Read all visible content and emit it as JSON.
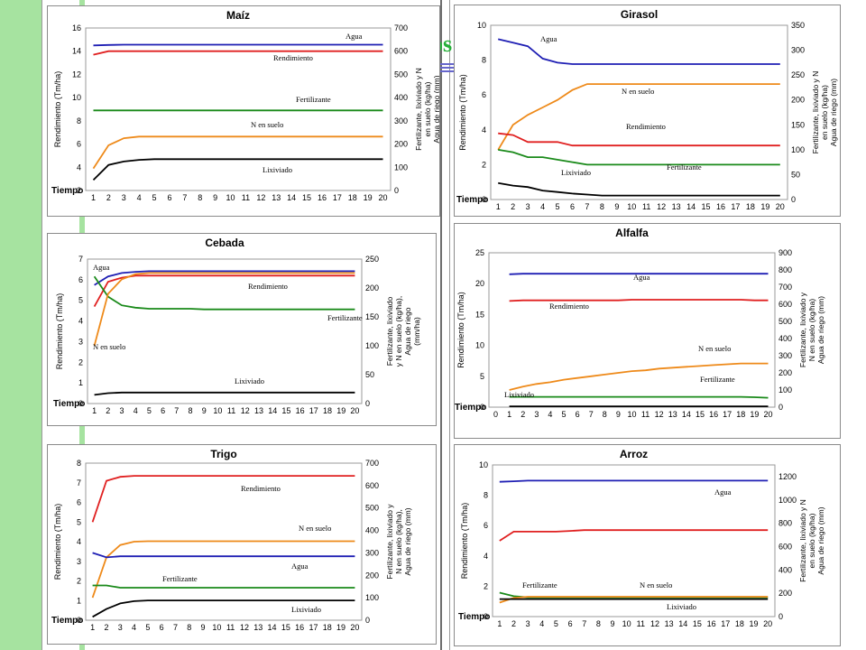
{
  "background": {
    "band_color": "#a6e3a0",
    "title_color": "#27b03a",
    "bar_color": "#6666cc"
  },
  "partial_title": "os",
  "series_colors": {
    "Agua": "#1f1fb4",
    "Rendimiento": "#e02020",
    "Fertilizante": "#1a8a1a",
    "N en suelo": "#ee8a1a",
    "Lixiviado": "#000000"
  },
  "chart_data": [
    {
      "type": "line",
      "title": "Maíz",
      "xlabel": "Tiempo",
      "ylabel_left": "Rendimiento (Tm/ha)",
      "ylabel_right": [
        "Fertilizante, lixiviado y N",
        "en suelo (kg/ha)",
        "Agua de riego (mm)"
      ],
      "x": [
        1,
        2,
        3,
        4,
        5,
        6,
        7,
        8,
        9,
        10,
        11,
        12,
        13,
        14,
        15,
        16,
        17,
        18,
        19,
        20
      ],
      "yleft_ticks": [
        2,
        4,
        6,
        8,
        10,
        12,
        14,
        16
      ],
      "yleft_lim": [
        2,
        16
      ],
      "yright_ticks": [
        0,
        100,
        200,
        300,
        400,
        500,
        600,
        700
      ],
      "yright_lim": [
        0,
        700
      ],
      "series": [
        {
          "name": "Agua",
          "axis": "right",
          "values": [
            625,
            627,
            628,
            628,
            628,
            628,
            628,
            628,
            628,
            628,
            628,
            628,
            628,
            628,
            628,
            628,
            628,
            628,
            628,
            628
          ]
        },
        {
          "name": "Rendimiento",
          "axis": "left",
          "values": [
            13.7,
            14.0,
            14.0,
            14.0,
            14.0,
            14.0,
            14.0,
            14.0,
            14.0,
            14.0,
            14.0,
            14.0,
            14.0,
            14.0,
            14.0,
            14.0,
            14.0,
            14.0,
            14.0,
            14.0
          ]
        },
        {
          "name": "Fertilizante",
          "axis": "right",
          "values": [
            345,
            345,
            345,
            345,
            345,
            345,
            345,
            345,
            345,
            345,
            345,
            345,
            345,
            345,
            345,
            345,
            345,
            345,
            345,
            345
          ]
        },
        {
          "name": "N en suelo",
          "axis": "right",
          "values": [
            95,
            195,
            225,
            232,
            232,
            232,
            232,
            232,
            232,
            232,
            232,
            232,
            232,
            232,
            232,
            232,
            232,
            232,
            232,
            232
          ]
        },
        {
          "name": "Lixiviado",
          "axis": "right",
          "values": [
            45,
            110,
            125,
            132,
            135,
            135,
            135,
            135,
            135,
            135,
            135,
            135,
            135,
            135,
            135,
            135,
            135,
            135,
            135,
            135
          ]
        }
      ]
    },
    {
      "type": "line",
      "title": "Girasol",
      "xlabel": "Tiempo",
      "ylabel_left": "Rendimiento (Tm/ha)",
      "ylabel_right": [
        "Fertilizante, lixiviado y N",
        "en suelo (kg/ha)",
        "Agua de riego (mm)"
      ],
      "x": [
        1,
        2,
        3,
        4,
        5,
        6,
        7,
        8,
        9,
        10,
        11,
        12,
        13,
        14,
        15,
        16,
        17,
        18,
        19,
        20
      ],
      "yleft_ticks": [
        0,
        2,
        4,
        6,
        8,
        10
      ],
      "yleft_lim": [
        0,
        10
      ],
      "yright_ticks": [
        0,
        50,
        100,
        150,
        200,
        250,
        300,
        350
      ],
      "yright_lim": [
        0,
        350
      ],
      "series": [
        {
          "name": "Agua",
          "axis": "right",
          "values": [
            322,
            315,
            308,
            283,
            275,
            272,
            272,
            272,
            272,
            272,
            272,
            272,
            272,
            272,
            272,
            272,
            272,
            272,
            272,
            272
          ]
        },
        {
          "name": "N en suelo",
          "axis": "right",
          "values": [
            100,
            150,
            170,
            185,
            200,
            220,
            232,
            232,
            232,
            232,
            232,
            232,
            232,
            232,
            232,
            232,
            232,
            232,
            232,
            232
          ]
        },
        {
          "name": "Rendimiento",
          "axis": "left",
          "values": [
            3.8,
            3.7,
            3.3,
            3.3,
            3.3,
            3.1,
            3.1,
            3.1,
            3.1,
            3.1,
            3.1,
            3.1,
            3.1,
            3.1,
            3.1,
            3.1,
            3.1,
            3.1,
            3.1,
            3.1
          ]
        },
        {
          "name": "Fertilizante",
          "axis": "right",
          "values": [
            100,
            95,
            85,
            85,
            80,
            75,
            70,
            70,
            70,
            70,
            70,
            70,
            70,
            70,
            70,
            70,
            70,
            70,
            70,
            70
          ]
        },
        {
          "name": "Lixiviado",
          "axis": "right",
          "values": [
            33,
            28,
            25,
            18,
            15,
            12,
            10,
            8,
            8,
            8,
            8,
            8,
            8,
            8,
            8,
            8,
            8,
            8,
            8,
            8
          ]
        }
      ]
    },
    {
      "type": "line",
      "title": "Cebada",
      "xlabel": "Tiempo",
      "ylabel_left": "Rendimiento (Tm/ha)",
      "ylabel_right": [
        "Fertilizante, lixiviado",
        "y N en suelo (kg/ha),",
        "Agua de riego",
        "(mm/ha)"
      ],
      "x": [
        1,
        2,
        3,
        4,
        5,
        6,
        7,
        8,
        9,
        10,
        11,
        12,
        13,
        14,
        15,
        16,
        17,
        18,
        19,
        20
      ],
      "yleft_ticks": [
        0,
        1,
        2,
        3,
        4,
        5,
        6,
        7
      ],
      "yleft_lim": [
        0,
        7
      ],
      "yright_ticks": [
        0,
        50,
        100,
        150,
        200,
        250
      ],
      "yright_lim": [
        0,
        250
      ],
      "series": [
        {
          "name": "Agua",
          "axis": "right",
          "values": [
            205,
            220,
            226,
            228,
            229,
            229,
            229,
            229,
            229,
            229,
            229,
            229,
            229,
            229,
            229,
            229,
            229,
            229,
            229,
            229
          ]
        },
        {
          "name": "Rendimiento",
          "axis": "left",
          "values": [
            4.7,
            5.9,
            6.1,
            6.2,
            6.2,
            6.2,
            6.2,
            6.2,
            6.2,
            6.2,
            6.2,
            6.2,
            6.2,
            6.2,
            6.2,
            6.2,
            6.2,
            6.2,
            6.2,
            6.2
          ]
        },
        {
          "name": "Fertilizante",
          "axis": "right",
          "values": [
            220,
            185,
            170,
            166,
            164,
            164,
            164,
            164,
            163,
            163,
            163,
            163,
            163,
            163,
            163,
            163,
            163,
            163,
            163,
            163
          ]
        },
        {
          "name": "N en suelo",
          "axis": "right",
          "values": [
            100,
            190,
            215,
            224,
            226,
            226,
            226,
            226,
            226,
            226,
            226,
            226,
            226,
            226,
            226,
            226,
            226,
            226,
            226,
            226
          ]
        },
        {
          "name": "Lixiviado",
          "axis": "right",
          "values": [
            15,
            18,
            19,
            19,
            19,
            19,
            19,
            19,
            19,
            19,
            19,
            19,
            19,
            19,
            19,
            19,
            19,
            19,
            19,
            19
          ]
        }
      ]
    },
    {
      "type": "line",
      "title": "Alfalfa",
      "xlabel": "Tiempo",
      "ylabel_left": "Rendimiento (Tm/ha)",
      "ylabel_right": [
        "Fertilizante, lixiviado y",
        "N en suelo (kg/ha)",
        "Agua de riego (mm)"
      ],
      "x": [
        0,
        1,
        2,
        3,
        4,
        5,
        6,
        7,
        8,
        9,
        10,
        11,
        12,
        13,
        14,
        15,
        16,
        17,
        18,
        19,
        20
      ],
      "yleft_ticks": [
        0,
        5,
        10,
        15,
        20,
        25
      ],
      "yleft_lim": [
        0,
        25
      ],
      "yright_ticks": [
        0,
        100,
        200,
        300,
        400,
        500,
        600,
        700,
        800,
        900
      ],
      "yright_lim": [
        0,
        900
      ],
      "series": [
        {
          "name": "Agua",
          "axis": "right",
          "values": [
            null,
            775,
            778,
            778,
            778,
            778,
            778,
            778,
            778,
            778,
            778,
            778,
            778,
            778,
            778,
            778,
            778,
            778,
            778,
            778,
            778
          ]
        },
        {
          "name": "Rendimiento",
          "axis": "left",
          "values": [
            null,
            17.2,
            17.3,
            17.3,
            17.3,
            17.3,
            17.3,
            17.3,
            17.3,
            17.3,
            17.4,
            17.4,
            17.4,
            17.4,
            17.4,
            17.4,
            17.4,
            17.4,
            17.4,
            17.3,
            17.3
          ]
        },
        {
          "name": "N en suelo",
          "axis": "right",
          "values": [
            null,
            100,
            120,
            135,
            145,
            160,
            170,
            180,
            190,
            200,
            210,
            215,
            225,
            230,
            235,
            240,
            245,
            250,
            255,
            255,
            255
          ]
        },
        {
          "name": "Fertilizante",
          "axis": "right",
          "values": [
            null,
            60,
            60,
            60,
            60,
            60,
            60,
            60,
            60,
            60,
            60,
            60,
            60,
            60,
            60,
            60,
            60,
            60,
            60,
            58,
            55
          ]
        },
        {
          "name": "Lixiviado",
          "axis": "right",
          "values": [
            null,
            5,
            5,
            5,
            5,
            5,
            5,
            5,
            5,
            5,
            5,
            5,
            5,
            5,
            5,
            5,
            5,
            5,
            5,
            5,
            5
          ]
        }
      ]
    },
    {
      "type": "line",
      "title": "Trigo",
      "xlabel": "Tiempo",
      "ylabel_left": "Rendimiento (Tm/ha)",
      "ylabel_right": [
        "Fertilizante, lixiviado y",
        "N en suelo (kg/ha),",
        "Agua de riego (mm)"
      ],
      "x": [
        1,
        2,
        3,
        4,
        5,
        6,
        7,
        8,
        9,
        10,
        11,
        12,
        13,
        14,
        15,
        16,
        17,
        18,
        19,
        20
      ],
      "yleft_ticks": [
        0,
        1,
        2,
        3,
        4,
        5,
        6,
        7,
        8
      ],
      "yleft_lim": [
        0,
        8
      ],
      "yright_ticks": [
        0,
        100,
        200,
        300,
        400,
        500,
        600,
        700
      ],
      "yright_lim": [
        0,
        700
      ],
      "series": [
        {
          "name": "Rendimiento",
          "axis": "left",
          "values": [
            5.0,
            7.1,
            7.3,
            7.35,
            7.35,
            7.35,
            7.35,
            7.35,
            7.35,
            7.35,
            7.35,
            7.35,
            7.35,
            7.35,
            7.35,
            7.35,
            7.35,
            7.35,
            7.35,
            7.35
          ]
        },
        {
          "name": "N en suelo",
          "axis": "right",
          "values": [
            100,
            280,
            335,
            350,
            352,
            352,
            352,
            352,
            352,
            352,
            352,
            352,
            352,
            352,
            352,
            352,
            352,
            352,
            352,
            352
          ]
        },
        {
          "name": "Agua",
          "axis": "right",
          "values": [
            300,
            280,
            285,
            285,
            285,
            285,
            285,
            285,
            285,
            285,
            285,
            285,
            285,
            285,
            285,
            285,
            285,
            285,
            285,
            285
          ]
        },
        {
          "name": "Fertilizante",
          "axis": "right",
          "values": [
            155,
            155,
            145,
            145,
            145,
            145,
            145,
            145,
            145,
            145,
            145,
            145,
            145,
            145,
            145,
            145,
            145,
            145,
            145,
            145
          ]
        },
        {
          "name": "Lixiviado",
          "axis": "right",
          "values": [
            15,
            50,
            75,
            85,
            88,
            88,
            88,
            88,
            88,
            88,
            88,
            88,
            88,
            88,
            88,
            88,
            88,
            88,
            88,
            88
          ]
        }
      ]
    },
    {
      "type": "line",
      "title": "Arroz",
      "xlabel": "Tiempo",
      "ylabel_left": "Rendimiento (Tm/ha)",
      "ylabel_right": [
        "Fertilizante, lixiviado y N",
        "en suelo (kg/ha)",
        "Agua de riego (mm)"
      ],
      "x": [
        1,
        2,
        3,
        4,
        5,
        6,
        7,
        8,
        9,
        10,
        11,
        12,
        13,
        14,
        15,
        16,
        17,
        18,
        19,
        20
      ],
      "yleft_ticks": [
        0,
        2,
        4,
        6,
        8,
        10
      ],
      "yleft_lim": [
        0,
        10
      ],
      "yright_ticks": [
        0,
        200,
        400,
        600,
        800,
        1000,
        1200
      ],
      "yright_lim": [
        0,
        1300
      ],
      "series": [
        {
          "name": "Agua",
          "axis": "right",
          "values": [
            1155,
            1160,
            1165,
            1165,
            1165,
            1165,
            1165,
            1165,
            1165,
            1165,
            1165,
            1165,
            1165,
            1165,
            1165,
            1165,
            1165,
            1165,
            1165,
            1165
          ]
        },
        {
          "name": "Rendimiento",
          "axis": "left",
          "values": [
            5.0,
            5.6,
            5.6,
            5.6,
            5.6,
            5.65,
            5.7,
            5.7,
            5.7,
            5.7,
            5.7,
            5.7,
            5.7,
            5.7,
            5.7,
            5.7,
            5.7,
            5.7,
            5.7,
            5.7
          ]
        },
        {
          "name": "Fertilizante",
          "axis": "right",
          "values": [
            205,
            175,
            165,
            165,
            165,
            165,
            165,
            165,
            165,
            165,
            165,
            165,
            165,
            165,
            165,
            165,
            165,
            165,
            165,
            165
          ]
        },
        {
          "name": "N en suelo",
          "axis": "right",
          "values": [
            120,
            160,
            170,
            170,
            170,
            170,
            170,
            170,
            170,
            170,
            170,
            170,
            170,
            170,
            170,
            170,
            170,
            170,
            170,
            170
          ]
        },
        {
          "name": "Lixiviado",
          "axis": "right",
          "values": [
            150,
            150,
            150,
            150,
            150,
            150,
            150,
            150,
            150,
            150,
            150,
            150,
            150,
            150,
            150,
            150,
            150,
            150,
            150,
            150
          ]
        }
      ]
    }
  ]
}
